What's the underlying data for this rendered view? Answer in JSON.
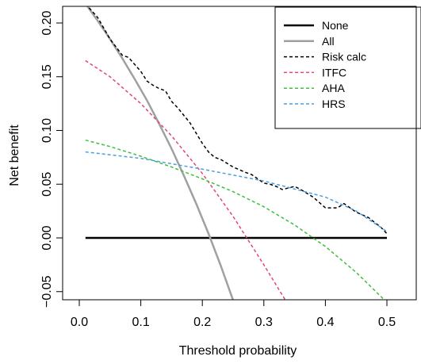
{
  "chart_data": {
    "type": "line",
    "title": "",
    "xlabel": "Threshold probability",
    "ylabel": "Net benefit",
    "xlim": [
      0.0,
      0.5
    ],
    "ylim": [
      -0.065,
      0.225
    ],
    "xticks": [
      0.0,
      0.1,
      0.2,
      0.3,
      0.4,
      0.5
    ],
    "xtick_labels": [
      "0.0",
      "0.1",
      "0.2",
      "0.3",
      "0.4",
      "0.5"
    ],
    "yticks": [
      -0.05,
      0.0,
      0.05,
      0.1,
      0.15,
      0.2
    ],
    "ytick_labels": [
      "−0.05",
      "0.00",
      "0.05",
      "0.10",
      "0.15",
      "0.20"
    ],
    "grid": false,
    "legend_position": "top-right",
    "series": [
      {
        "name": "None",
        "color": "#000000",
        "style": "solid",
        "width": 2.5,
        "x": [
          0.01,
          0.5
        ],
        "y": [
          0.0,
          0.0
        ]
      },
      {
        "name": "All",
        "color": "#a0a0a0",
        "style": "solid",
        "width": 2.5,
        "x": [
          0.01,
          0.03,
          0.05,
          0.07,
          0.09,
          0.11,
          0.13,
          0.15,
          0.17,
          0.19,
          0.21,
          0.23,
          0.25,
          0.27
        ],
        "y": [
          0.218,
          0.202,
          0.185,
          0.167,
          0.148,
          0.128,
          0.106,
          0.083,
          0.058,
          0.032,
          0.004,
          -0.026,
          -0.058,
          -0.092
        ]
      },
      {
        "name": "Risk calc",
        "color": "#000000",
        "style": "dashed",
        "width": 1.5,
        "x": [
          0.01,
          0.03,
          0.05,
          0.07,
          0.08,
          0.1,
          0.11,
          0.12,
          0.13,
          0.14,
          0.15,
          0.16,
          0.17,
          0.18,
          0.2,
          0.21,
          0.22,
          0.23,
          0.25,
          0.27,
          0.28,
          0.3,
          0.31,
          0.32,
          0.33,
          0.35,
          0.36,
          0.38,
          0.4,
          0.42,
          0.43,
          0.45,
          0.47,
          0.49,
          0.5
        ],
        "y": [
          0.218,
          0.205,
          0.185,
          0.17,
          0.168,
          0.155,
          0.146,
          0.142,
          0.139,
          0.137,
          0.127,
          0.121,
          0.114,
          0.107,
          0.088,
          0.08,
          0.075,
          0.073,
          0.066,
          0.061,
          0.059,
          0.051,
          0.05,
          0.048,
          0.045,
          0.048,
          0.045,
          0.038,
          0.028,
          0.028,
          0.032,
          0.024,
          0.019,
          0.01,
          0.004
        ]
      },
      {
        "name": "ITFC",
        "color": "#e0457b",
        "style": "dashed",
        "width": 1.5,
        "x": [
          0.01,
          0.05,
          0.1,
          0.15,
          0.2,
          0.25,
          0.3,
          0.35,
          0.36
        ],
        "y": [
          0.165,
          0.15,
          0.125,
          0.095,
          0.06,
          0.02,
          -0.025,
          -0.072,
          -0.081
        ]
      },
      {
        "name": "AHA",
        "color": "#3fbf3f",
        "style": "dashed",
        "width": 1.5,
        "x": [
          0.01,
          0.05,
          0.1,
          0.15,
          0.2,
          0.25,
          0.3,
          0.35,
          0.4,
          0.45,
          0.5
        ],
        "y": [
          0.091,
          0.085,
          0.076,
          0.066,
          0.055,
          0.043,
          0.029,
          0.012,
          -0.008,
          -0.032,
          -0.06
        ]
      },
      {
        "name": "HRS",
        "color": "#4a9fe0",
        "style": "dashed",
        "width": 1.5,
        "x": [
          0.01,
          0.1,
          0.2,
          0.3,
          0.4,
          0.45,
          0.5
        ],
        "y": [
          0.08,
          0.074,
          0.064,
          0.053,
          0.038,
          0.025,
          0.006
        ]
      }
    ]
  }
}
